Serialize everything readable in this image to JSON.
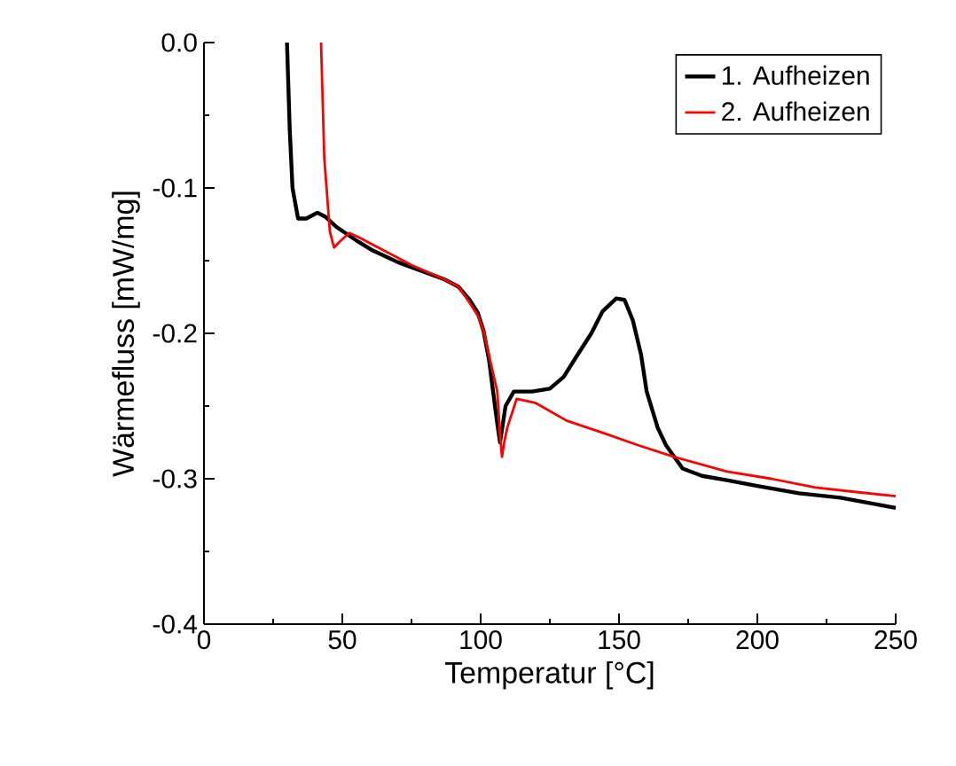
{
  "chart_data": {
    "type": "line",
    "xlabel": "Temperatur [°C]",
    "ylabel": "Wärmefluss [mW/mg]",
    "xlim": [
      0,
      250
    ],
    "ylim": [
      -0.4,
      0.0
    ],
    "xticks": [
      0,
      50,
      100,
      150,
      200,
      250
    ],
    "yticks": [
      {
        "value": -0.4,
        "label": "-0.4"
      },
      {
        "value": -0.3,
        "label": "-0.3"
      },
      {
        "value": -0.2,
        "label": "-0.2"
      },
      {
        "value": -0.1,
        "label": "-0.1"
      },
      {
        "value": 0.0,
        "label": "0.0"
      }
    ],
    "legend": "top right",
    "grid": false,
    "line_style": "solid",
    "marker": "none",
    "series": [
      {
        "name": "1. Aufheizen",
        "color": "#000000",
        "x": [
          30,
          31,
          32,
          34,
          37,
          41,
          44,
          48,
          55,
          61,
          70,
          80,
          87,
          92,
          96,
          99,
          101,
          103,
          104.5,
          106,
          107,
          109,
          112,
          118.6,
          125,
          130,
          134.6,
          140,
          144,
          149,
          152,
          155,
          158,
          160,
          164,
          167,
          173,
          180,
          189,
          200,
          215,
          230,
          250
        ],
        "values": [
          0,
          -0.06,
          -0.1,
          -0.121,
          -0.121,
          -0.117,
          -0.12,
          -0.127,
          -0.136,
          -0.143,
          -0.151,
          -0.158,
          -0.163,
          -0.168,
          -0.177,
          -0.186,
          -0.198,
          -0.218,
          -0.24,
          -0.262,
          -0.275,
          -0.25,
          -0.24,
          -0.24,
          -0.238,
          -0.23,
          -0.216,
          -0.2,
          -0.185,
          -0.176,
          -0.177,
          -0.191,
          -0.215,
          -0.24,
          -0.265,
          -0.277,
          -0.293,
          -0.298,
          -0.301,
          -0.305,
          -0.31,
          -0.313,
          -0.32
        ]
      },
      {
        "name": "2. Aufheizen",
        "color": "#ff0000",
        "x": [
          42.3,
          43.5,
          45.5,
          47,
          49,
          52.5,
          56,
          61,
          67,
          75,
          87,
          92,
          96,
          99,
          101,
          103,
          106,
          107,
          107.7,
          108.5,
          109.6,
          113,
          120,
          131,
          145,
          157,
          170,
          189,
          205,
          221,
          235,
          250
        ],
        "values": [
          0,
          -0.08,
          -0.13,
          -0.141,
          -0.137,
          -0.131,
          -0.134,
          -0.139,
          -0.145,
          -0.153,
          -0.163,
          -0.168,
          -0.179,
          -0.188,
          -0.198,
          -0.215,
          -0.24,
          -0.27,
          -0.285,
          -0.275,
          -0.265,
          -0.245,
          -0.248,
          -0.26,
          -0.269,
          -0.277,
          -0.285,
          -0.295,
          -0.3,
          -0.306,
          -0.309,
          -0.312
        ]
      }
    ]
  }
}
